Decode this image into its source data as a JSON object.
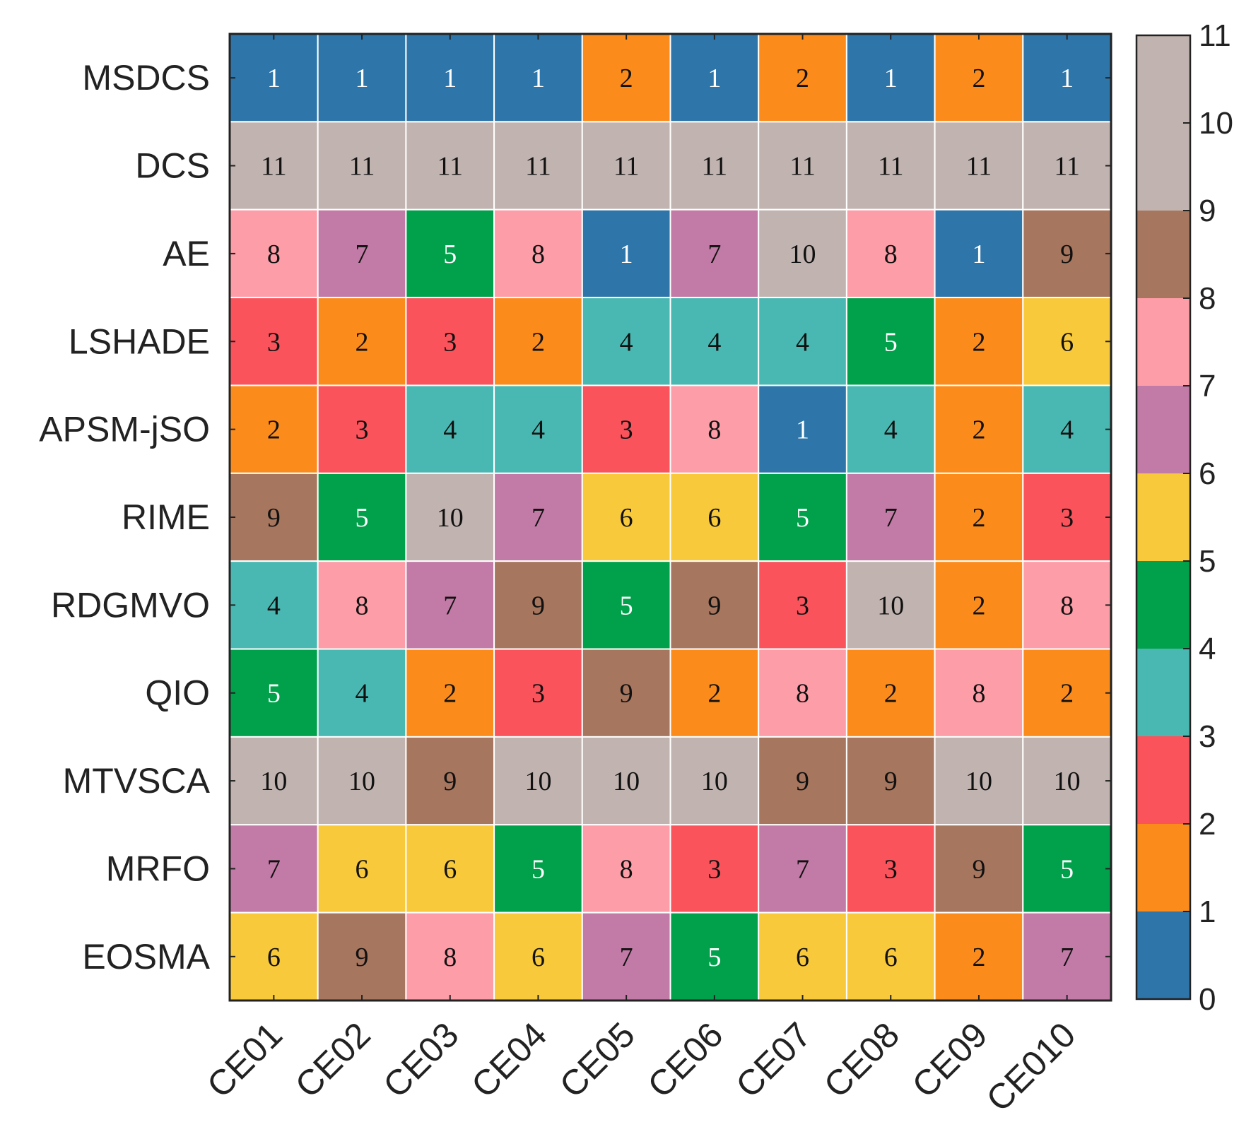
{
  "chart_data": {
    "type": "heatmap",
    "title": "",
    "xlabel": "",
    "ylabel": "",
    "rows": [
      "MSDCS",
      "DCS",
      "AE",
      "LSHADE",
      "APSM-jSO",
      "RIME",
      "RDGMVO",
      "QIO",
      "MTVSCA",
      "MRFO",
      "EOSMA"
    ],
    "columns": [
      "CE01",
      "CE02",
      "CE03",
      "CE04",
      "CE05",
      "CE06",
      "CE07",
      "CE08",
      "CE09",
      "CE010"
    ],
    "values": [
      [
        1,
        1,
        1,
        1,
        2,
        1,
        2,
        1,
        2,
        1
      ],
      [
        11,
        11,
        11,
        11,
        11,
        11,
        11,
        11,
        11,
        11
      ],
      [
        8,
        7,
        5,
        8,
        1,
        7,
        10,
        8,
        1,
        9
      ],
      [
        3,
        2,
        3,
        2,
        4,
        4,
        4,
        5,
        2,
        6
      ],
      [
        2,
        3,
        4,
        4,
        3,
        8,
        1,
        4,
        2,
        4
      ],
      [
        9,
        5,
        10,
        7,
        6,
        6,
        5,
        7,
        2,
        3
      ],
      [
        4,
        8,
        7,
        9,
        5,
        9,
        3,
        10,
        2,
        8
      ],
      [
        5,
        4,
        2,
        3,
        9,
        2,
        8,
        2,
        8,
        2
      ],
      [
        10,
        10,
        9,
        10,
        10,
        10,
        9,
        9,
        10,
        10
      ],
      [
        7,
        6,
        6,
        5,
        8,
        3,
        7,
        3,
        9,
        5
      ],
      [
        6,
        9,
        8,
        6,
        7,
        5,
        6,
        6,
        2,
        7
      ]
    ],
    "colorbar": {
      "range": [
        0,
        11
      ],
      "ticks": [
        "0",
        "1",
        "2",
        "3",
        "4",
        "5",
        "6",
        "7",
        "8",
        "9",
        "10",
        "11"
      ],
      "colors": [
        "#2e75aa",
        "#fb8c1c",
        "#fa535c",
        "#49b8b2",
        "#00a14a",
        "#f8c93a",
        "#c27aa6",
        "#fd9da7",
        "#a7765e",
        "#c1b4b0",
        "#c1b4b0"
      ]
    },
    "text_color_light": "#ffffff",
    "text_color_dark": "#111111",
    "grid_color": "#ffffff"
  }
}
